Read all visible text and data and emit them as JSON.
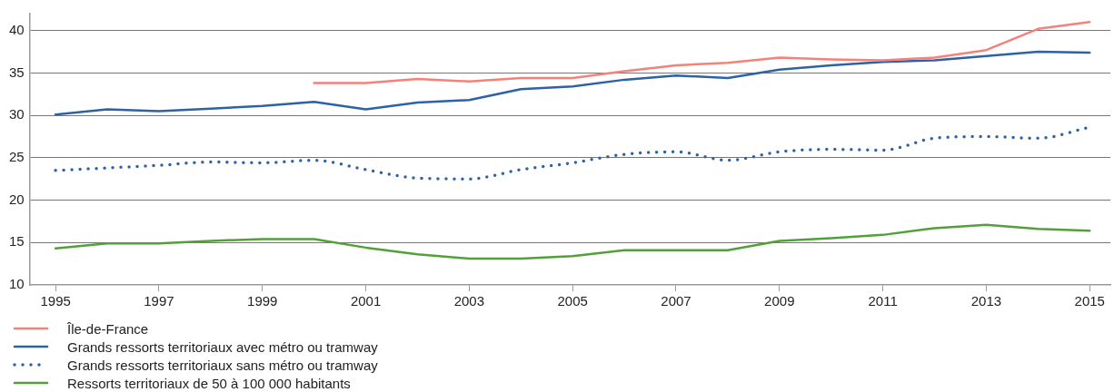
{
  "chart_data": {
    "type": "line",
    "x": [
      1995,
      1996,
      1997,
      1998,
      1999,
      2000,
      2001,
      2002,
      2003,
      2004,
      2005,
      2006,
      2007,
      2008,
      2009,
      2010,
      2011,
      2012,
      2013,
      2014,
      2015
    ],
    "series": [
      {
        "name": "Île-de-France",
        "color": "#f4827b",
        "values": [
          null,
          null,
          null,
          null,
          null,
          33.8,
          33.8,
          34.3,
          34.0,
          34.4,
          34.4,
          35.2,
          35.9,
          36.2,
          36.8,
          36.6,
          36.5,
          36.8,
          37.7,
          40.2,
          41.0
        ]
      },
      {
        "name": "Grands ressorts territoriaux avec métro ou tramway",
        "color": "#2e62a6",
        "values": [
          30.1,
          30.7,
          30.5,
          30.8,
          31.1,
          31.6,
          30.7,
          31.5,
          31.8,
          33.1,
          33.4,
          34.2,
          34.7,
          34.4,
          35.4,
          35.9,
          36.3,
          36.5,
          37.0,
          37.5,
          37.4
        ]
      },
      {
        "name": "Grands ressorts territoriaux sans métro ou tramway",
        "color": "#2e62a6",
        "line_style": "dotted",
        "values": [
          23.5,
          23.8,
          24.1,
          24.5,
          24.4,
          24.7,
          23.6,
          22.6,
          22.5,
          23.6,
          24.4,
          25.4,
          25.7,
          24.7,
          25.7,
          26.0,
          25.9,
          27.3,
          27.5,
          27.3,
          28.6
        ]
      },
      {
        "name": "Ressorts territoriaux de 50 à 100 000 habitants",
        "color": "#53a03a",
        "values": [
          14.3,
          14.9,
          14.9,
          15.2,
          15.4,
          15.4,
          14.4,
          13.6,
          13.1,
          13.1,
          13.4,
          14.1,
          14.1,
          14.1,
          15.2,
          15.5,
          15.9,
          16.7,
          17.1,
          16.6,
          16.4
        ]
      }
    ],
    "xlim": [
      1994.5,
      2015.4
    ],
    "xticks": [
      1995,
      1997,
      1999,
      2001,
      2003,
      2005,
      2007,
      2009,
      2011,
      2013,
      2015
    ],
    "ylim": [
      10,
      42
    ],
    "yticks": [
      10,
      15,
      20,
      25,
      30,
      35,
      40
    ],
    "grid": "y",
    "legend": "bottom left",
    "marker": "none",
    "line_style": "solid"
  }
}
